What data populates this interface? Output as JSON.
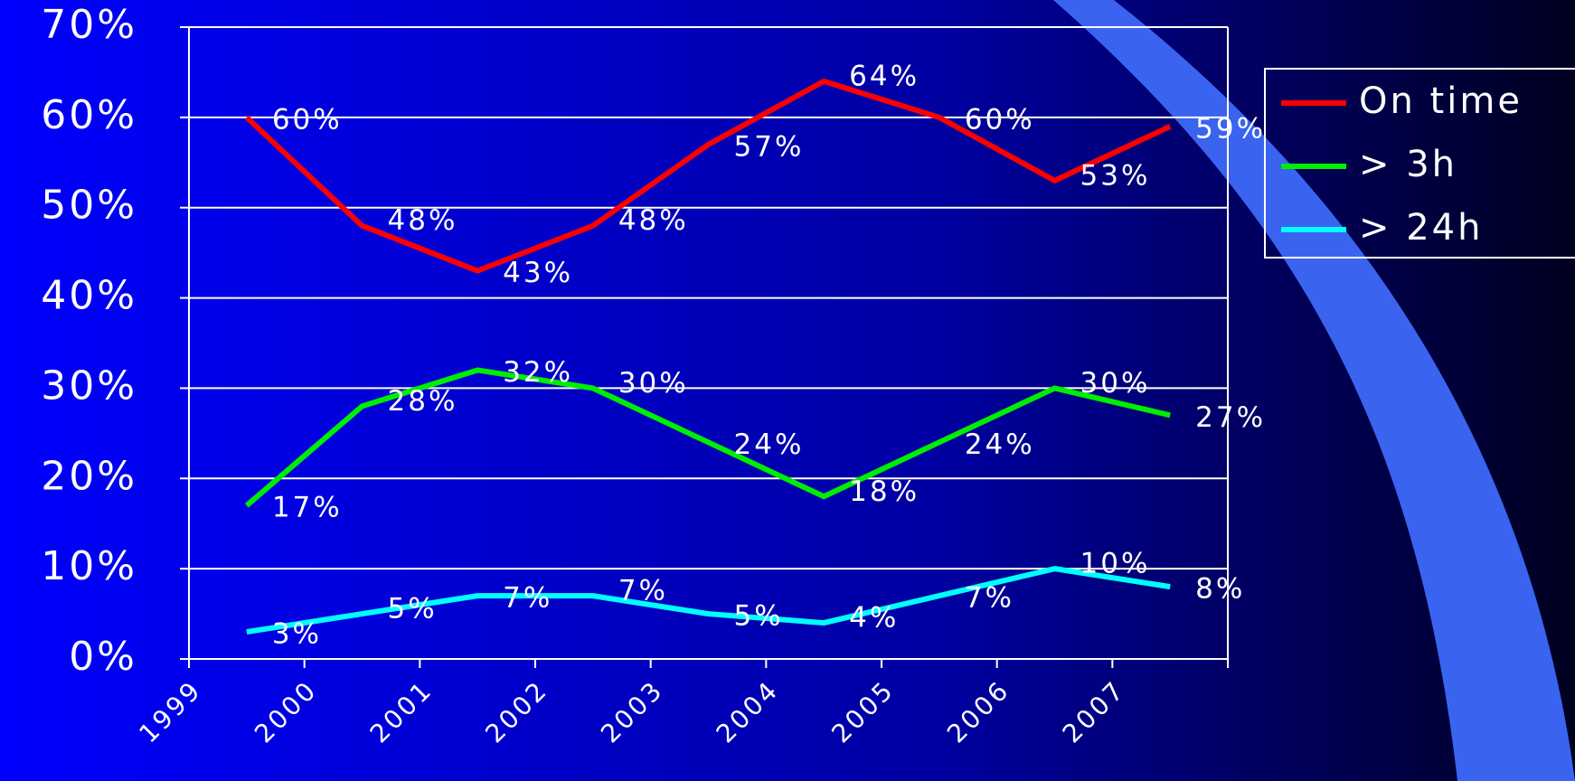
{
  "chart_data": {
    "type": "line",
    "categories": [
      "1999",
      "2000",
      "2001",
      "2002",
      "2003",
      "2004",
      "2005",
      "2006",
      "2007"
    ],
    "series": [
      {
        "name": "On time",
        "color": "#ff0000",
        "values": [
          60,
          48,
          43,
          48,
          57,
          64,
          60,
          53,
          59
        ],
        "value_labels": [
          "60%",
          "48%",
          "43%",
          "48%",
          "57%",
          "64%",
          "60%",
          "53%",
          "59%"
        ]
      },
      {
        "name": "> 3h",
        "color": "#00ee00",
        "values": [
          17,
          28,
          32,
          30,
          24,
          18,
          24,
          30,
          27
        ],
        "value_labels": [
          "17%",
          "28%",
          "32%",
          "30%",
          "24%",
          "18%",
          "24%",
          "30%",
          "27%"
        ]
      },
      {
        "name": "> 24h",
        "color": "#00ffff",
        "values": [
          3,
          5,
          7,
          7,
          5,
          4,
          7,
          10,
          8
        ],
        "value_labels": [
          "3%",
          "5%",
          "7%",
          "7%",
          "5%",
          "4%",
          "7%",
          "10%",
          "8%"
        ]
      }
    ],
    "ylim": [
      0,
      70
    ],
    "yticks": [
      {
        "value": 0,
        "label": "0%"
      },
      {
        "value": 10,
        "label": "10%"
      },
      {
        "value": 20,
        "label": "20%"
      },
      {
        "value": 30,
        "label": "30%"
      },
      {
        "value": 40,
        "label": "40%"
      },
      {
        "value": 50,
        "label": "50%"
      },
      {
        "value": 60,
        "label": "60%"
      },
      {
        "value": 70,
        "label": "70%"
      }
    ],
    "grid": true,
    "legend": "right"
  }
}
